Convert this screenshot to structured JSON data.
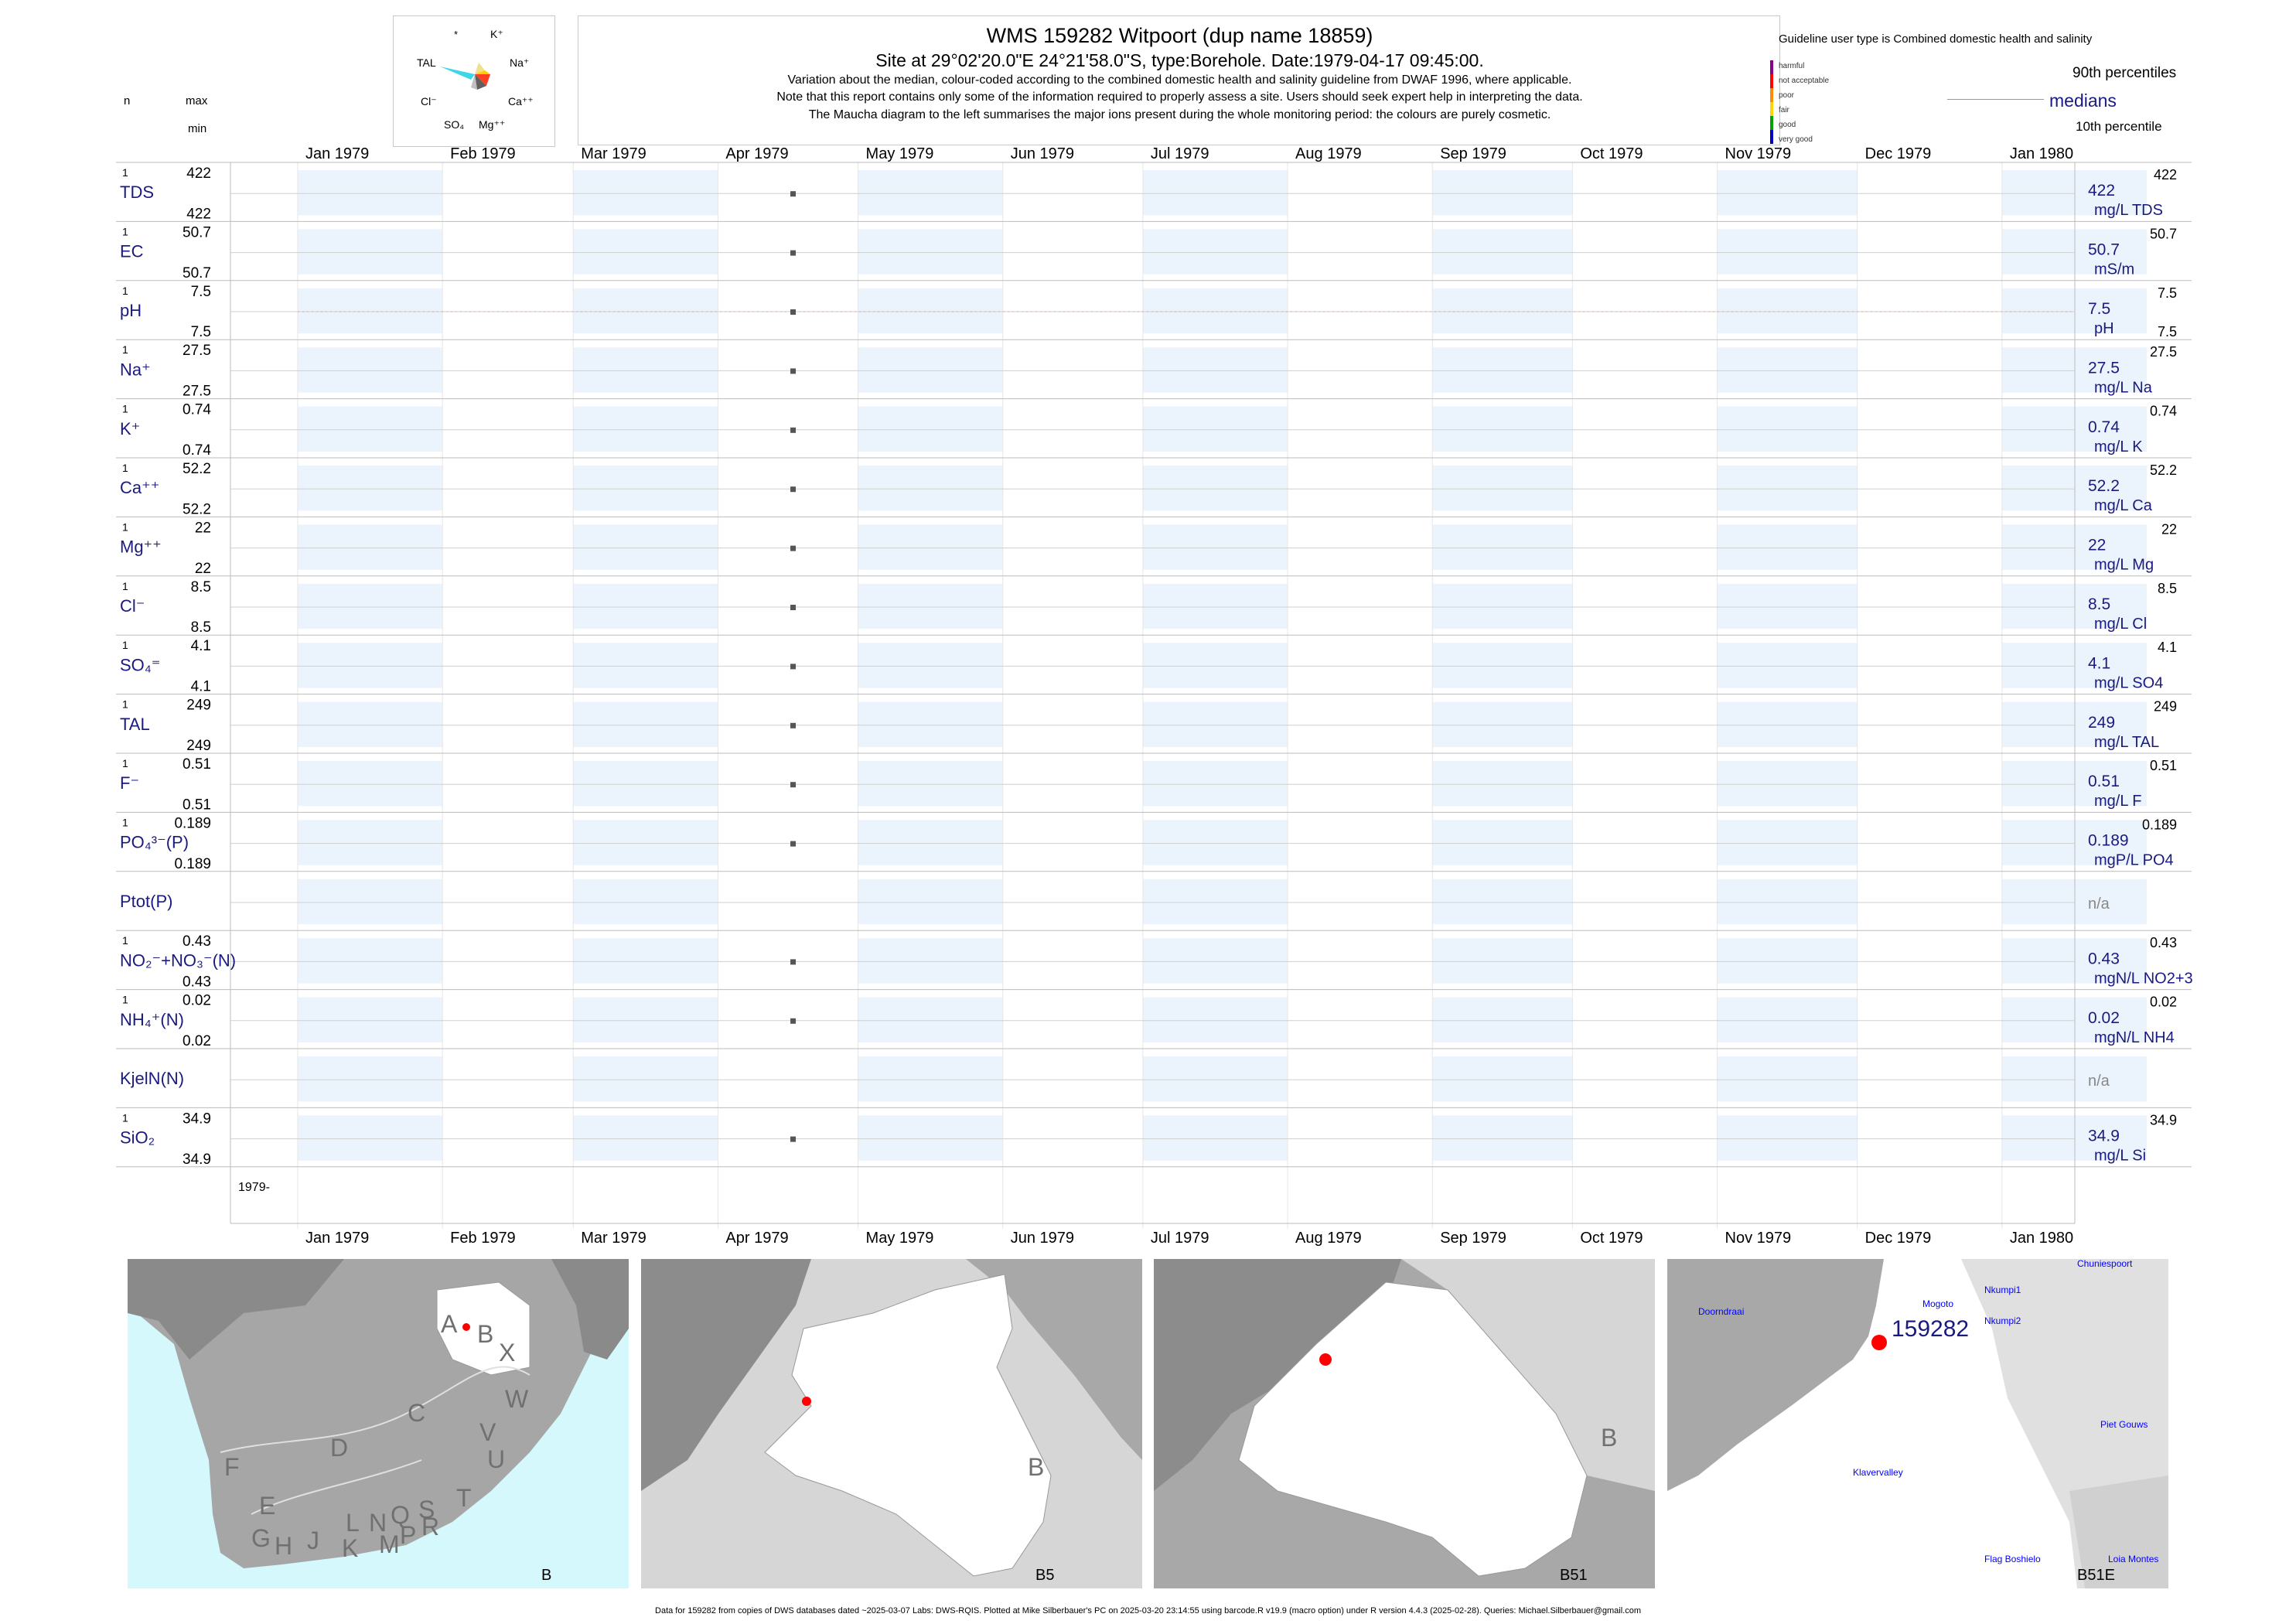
{
  "header": {
    "title": "WMS 159282  Witpoort (dup name 18859)",
    "subtitle": "Site at 29°02'20.0\"E 24°21'58.0\"S, type:Borehole. Date:1979-04-17 09:45:00.",
    "note1": "Variation about the median,  colour-coded according to the combined domestic health and salinity guideline from DWAF 1996, where applicable.",
    "note2": "Note that this report contains only some of the information required to properly assess a site. Users should seek expert help in interpreting the data.",
    "note3": "The Maucha diagram to the left summarises the major ions present during the whole monitoring period: the colours are purely cosmetic."
  },
  "maucha": {
    "labels": [
      "*",
      "K⁺",
      "TAL",
      "Na⁺",
      "Cl⁻",
      "Ca⁺⁺",
      "SO₄",
      "Mg⁺⁺"
    ]
  },
  "legend": {
    "guideline": "Guideline user type is Combined domestic health and salinity",
    "p90": "90th percentiles",
    "medians": "medians",
    "p10": "10th percentile",
    "classes": [
      {
        "label": "harmful",
        "color": "#8b008b"
      },
      {
        "label": "not acceptable",
        "color": "#ff0000"
      },
      {
        "label": "poor",
        "color": "#ff8c00"
      },
      {
        "label": "fair",
        "color": "#ffd700"
      },
      {
        "label": "good",
        "color": "#00a000"
      },
      {
        "label": "very good",
        "color": "#0000c0"
      }
    ]
  },
  "left_header": {
    "n": "n",
    "max": "max",
    "min": "min"
  },
  "chart_data": {
    "type": "scatter",
    "x_range": [
      "1979-01-01",
      "1980-01-31"
    ],
    "months": [
      "Jan 1979",
      "Feb 1979",
      "Mar 1979",
      "Apr 1979",
      "May 1979",
      "Jun 1979",
      "Jul 1979",
      "Aug 1979",
      "Sep 1979",
      "Oct 1979",
      "Nov 1979",
      "Dec 1979",
      "Jan 1980"
    ],
    "year_label": "1979-",
    "sample_date": "1979-04-17",
    "parameters": [
      {
        "name": "TDS",
        "n": "1",
        "max": "422",
        "min": "422",
        "median": "422",
        "unit": "mg/L TDS",
        "p90": "422",
        "value": 422
      },
      {
        "name": "EC",
        "n": "1",
        "max": "50.7",
        "min": "50.7",
        "median": "50.7",
        "unit": "mS/m",
        "p90": "50.7",
        "value": 50.7
      },
      {
        "name": "pH",
        "n": "1",
        "max": "7.5",
        "min": "7.5",
        "median": "7.5",
        "unit": "pH",
        "p90": "7.5",
        "p10": "7.5",
        "value": 7.5
      },
      {
        "name": "Na⁺",
        "n": "1",
        "max": "27.5",
        "min": "27.5",
        "median": "27.5",
        "unit": "mg/L Na",
        "p90": "27.5",
        "value": 27.5
      },
      {
        "name": "K⁺",
        "n": "1",
        "max": "0.74",
        "min": "0.74",
        "median": "0.74",
        "unit": "mg/L K",
        "p90": "0.74",
        "value": 0.74
      },
      {
        "name": "Ca⁺⁺",
        "n": "1",
        "max": "52.2",
        "min": "52.2",
        "median": "52.2",
        "unit": "mg/L Ca",
        "p90": "52.2",
        "value": 52.2
      },
      {
        "name": "Mg⁺⁺",
        "n": "1",
        "max": "22",
        "min": "22",
        "median": "22",
        "unit": "mg/L Mg",
        "p90": "22",
        "value": 22
      },
      {
        "name": "Cl⁻",
        "n": "1",
        "max": "8.5",
        "min": "8.5",
        "median": "8.5",
        "unit": "mg/L Cl",
        "p90": "8.5",
        "value": 8.5
      },
      {
        "name": "SO₄⁼",
        "n": "1",
        "max": "4.1",
        "min": "4.1",
        "median": "4.1",
        "unit": "mg/L SO4",
        "p90": "4.1",
        "value": 4.1
      },
      {
        "name": "TAL",
        "n": "1",
        "max": "249",
        "min": "249",
        "median": "249",
        "unit": "mg/L TAL",
        "p90": "249",
        "value": 249
      },
      {
        "name": "F⁻",
        "n": "1",
        "max": "0.51",
        "min": "0.51",
        "median": "0.51",
        "unit": "mg/L F",
        "p90": "0.51",
        "value": 0.51
      },
      {
        "name": "PO₄³⁻(P)",
        "n": "1",
        "max": "0.189",
        "min": "0.189",
        "median": "0.189",
        "unit": "mgP/L PO4",
        "p90": "0.189",
        "value": 0.189
      },
      {
        "name": "Ptot(P)",
        "n": "",
        "max": "",
        "min": "",
        "median": "n/a",
        "unit": "",
        "p90": "",
        "value": null
      },
      {
        "name": "NO₂⁻+NO₃⁻(N)",
        "n": "1",
        "max": "0.43",
        "min": "0.43",
        "median": "0.43",
        "unit": "mgN/L NO2+3",
        "p90": "0.43",
        "value": 0.43
      },
      {
        "name": "NH₄⁺(N)",
        "n": "1",
        "max": "0.02",
        "min": "0.02",
        "median": "0.02",
        "unit": "mgN/L NH4",
        "p90": "0.02",
        "value": 0.02
      },
      {
        "name": "KjelN(N)",
        "n": "",
        "max": "",
        "min": "",
        "median": "n/a",
        "unit": "",
        "p90": "",
        "value": null
      },
      {
        "name": "SiO₂",
        "n": "1",
        "max": "34.9",
        "min": "34.9",
        "median": "34.9",
        "unit": "mg/L Si",
        "p90": "34.9",
        "value": 34.9
      }
    ]
  },
  "maps": {
    "panel1": {
      "label": "B",
      "regions": [
        "A",
        "B",
        "X",
        "W",
        "C",
        "V",
        "U",
        "D",
        "T",
        "F",
        "E",
        "G",
        "H",
        "J",
        "K",
        "L",
        "M",
        "N",
        "P",
        "Q",
        "R",
        "S"
      ]
    },
    "panel2": {
      "label": "B5",
      "region": "B"
    },
    "panel3": {
      "label": "B51",
      "region": "B"
    },
    "panel4": {
      "label": "B51E",
      "site": "159282",
      "places": [
        "Chuniespoort",
        "Mogoto",
        "Nkumpi1",
        "Nkumpi2",
        "Doorndraai",
        "Piet Gouws",
        "Klavervalley",
        "Flag Boshielo",
        "Loia Montes"
      ]
    }
  },
  "footer": "Data for 159282 from copies of DWS databases dated ~2025-03-07 Labs: DWS-RQIS. Plotted at Mike Silberbauer's PC on 2025-03-20 23:14:55 using barcode.R v19.9 (macro option) under R version 4.4.3 (2025-02-28). Queries: Michael.Silberbauer@gmail.com"
}
